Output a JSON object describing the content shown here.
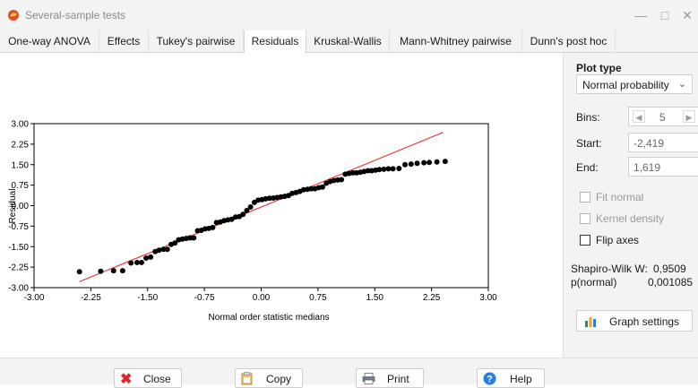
{
  "window": {
    "title": "Several-sample tests",
    "icons": [
      "app-logo-icon",
      "minimize-icon",
      "maximize-icon",
      "close-window-icon"
    ]
  },
  "tabs": [
    {
      "label": "One-way ANOVA",
      "active": false
    },
    {
      "label": "Effects",
      "active": false
    },
    {
      "label": "Tukey's pairwise",
      "active": false
    },
    {
      "label": "Residuals",
      "active": true
    },
    {
      "label": "Kruskal-Wallis",
      "active": false
    },
    {
      "label": "Mann-Whitney pairwise",
      "active": false
    },
    {
      "label": "Dunn's post hoc",
      "active": false
    }
  ],
  "chart_data": {
    "type": "scatter",
    "xlabel": "Normal order statistic medians",
    "ylabel": "Residual",
    "xlim": [
      -3.0,
      3.0
    ],
    "ylim": [
      -3.0,
      3.0
    ],
    "x_ticks": [
      "-3.00",
      "-2.25",
      "-1.50",
      "-0.75",
      "0.00",
      "0.75",
      "1.50",
      "2.25",
      "3.00"
    ],
    "y_ticks": [
      "3.00",
      "2.25",
      "1.50",
      "0.75",
      "0.00",
      "-0.75",
      "-1.50",
      "-2.25",
      "-3.00"
    ],
    "grid": false,
    "reference_line": {
      "x": [
        -2.4,
        2.4
      ],
      "y": [
        -2.78,
        2.68
      ],
      "color": "#e8413c"
    },
    "series": [
      {
        "color": "#000000",
        "points": [
          [
            -2.4,
            -2.42
          ],
          [
            -2.12,
            -2.4
          ],
          [
            -1.95,
            -2.38
          ],
          [
            -1.83,
            -2.38
          ],
          [
            -1.72,
            -2.1
          ],
          [
            -1.64,
            -2.08
          ],
          [
            -1.58,
            -2.08
          ],
          [
            -1.52,
            -1.92
          ],
          [
            -1.46,
            -1.88
          ],
          [
            -1.4,
            -1.68
          ],
          [
            -1.35,
            -1.63
          ],
          [
            -1.29,
            -1.6
          ],
          [
            -1.24,
            -1.6
          ],
          [
            -1.19,
            -1.42
          ],
          [
            -1.14,
            -1.37
          ],
          [
            -1.09,
            -1.25
          ],
          [
            -1.04,
            -1.22
          ],
          [
            -0.99,
            -1.2
          ],
          [
            -0.94,
            -1.18
          ],
          [
            -0.89,
            -1.18
          ],
          [
            -0.84,
            -0.92
          ],
          [
            -0.79,
            -0.9
          ],
          [
            -0.74,
            -0.85
          ],
          [
            -0.69,
            -0.83
          ],
          [
            -0.64,
            -0.8
          ],
          [
            -0.59,
            -0.62
          ],
          [
            -0.54,
            -0.6
          ],
          [
            -0.49,
            -0.55
          ],
          [
            -0.44,
            -0.52
          ],
          [
            -0.39,
            -0.5
          ],
          [
            -0.34,
            -0.42
          ],
          [
            -0.29,
            -0.4
          ],
          [
            -0.24,
            -0.32
          ],
          [
            -0.19,
            -0.18
          ],
          [
            -0.14,
            -0.05
          ],
          [
            -0.09,
            0.12
          ],
          [
            -0.04,
            0.2
          ],
          [
            0.01,
            0.22
          ],
          [
            0.06,
            0.25
          ],
          [
            0.11,
            0.27
          ],
          [
            0.16,
            0.28
          ],
          [
            0.21,
            0.3
          ],
          [
            0.26,
            0.32
          ],
          [
            0.31,
            0.34
          ],
          [
            0.36,
            0.37
          ],
          [
            0.41,
            0.45
          ],
          [
            0.46,
            0.48
          ],
          [
            0.51,
            0.52
          ],
          [
            0.56,
            0.58
          ],
          [
            0.61,
            0.6
          ],
          [
            0.66,
            0.62
          ],
          [
            0.71,
            0.62
          ],
          [
            0.76,
            0.66
          ],
          [
            0.81,
            0.68
          ],
          [
            0.86,
            0.82
          ],
          [
            0.91,
            0.88
          ],
          [
            0.96,
            0.92
          ],
          [
            1.01,
            0.94
          ],
          [
            1.06,
            0.95
          ],
          [
            1.11,
            1.15
          ],
          [
            1.16,
            1.18
          ],
          [
            1.21,
            1.2
          ],
          [
            1.26,
            1.2
          ],
          [
            1.31,
            1.22
          ],
          [
            1.36,
            1.25
          ],
          [
            1.41,
            1.28
          ],
          [
            1.46,
            1.28
          ],
          [
            1.51,
            1.3
          ],
          [
            1.56,
            1.32
          ],
          [
            1.62,
            1.33
          ],
          [
            1.68,
            1.35
          ],
          [
            1.74,
            1.35
          ],
          [
            1.82,
            1.36
          ],
          [
            1.9,
            1.5
          ],
          [
            1.98,
            1.52
          ],
          [
            2.06,
            1.55
          ],
          [
            2.15,
            1.57
          ],
          [
            2.22,
            1.58
          ],
          [
            2.32,
            1.6
          ],
          [
            2.43,
            1.62
          ]
        ]
      }
    ]
  },
  "side": {
    "plot_type_label": "Plot type",
    "plot_type_value": "Normal probability",
    "bins_label": "Bins:",
    "bins_value": "5",
    "start_label": "Start:",
    "start_value": "-2,419",
    "end_label": "End:",
    "end_value": "1,619",
    "fit_normal": "Fit normal",
    "kernel_density": "Kernel density",
    "flip_axes": "Flip axes",
    "shapiro_label": "Shapiro-Wilk W:",
    "shapiro_value": "0,9509",
    "p_label": "p(normal)",
    "p_value": "0,001085",
    "graph_settings": "Graph settings"
  },
  "bottom": {
    "close": "Close",
    "copy": "Copy",
    "print": "Print",
    "help": "Help"
  },
  "colors": {
    "close_icon": "#e0262b",
    "help_icon": "#2a7de1",
    "ref_line": "#e8413c"
  }
}
